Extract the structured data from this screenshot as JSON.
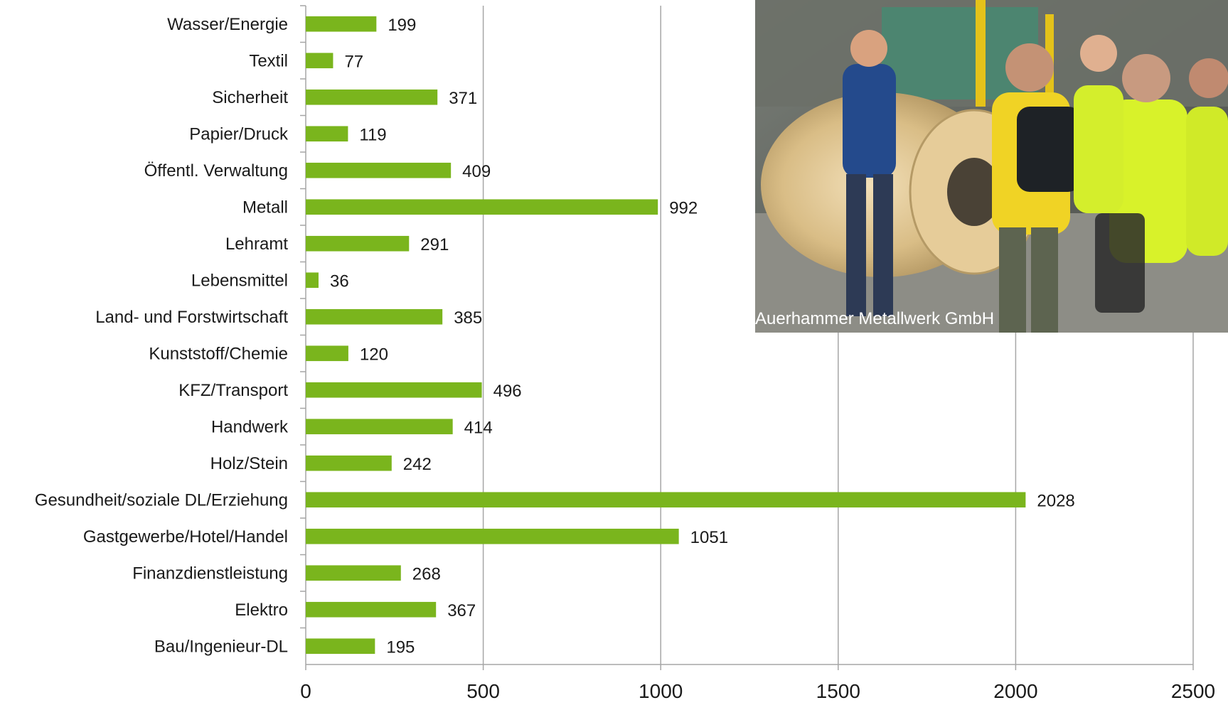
{
  "chart_data": {
    "type": "bar",
    "orientation": "horizontal",
    "categories": [
      "Wasser/Energie",
      "Textil",
      "Sicherheit",
      "Papier/Druck",
      "Öffentl. Verwaltung",
      "Metall",
      "Lehramt",
      "Lebensmittel",
      "Land- und Forstwirtschaft",
      "Kunststoff/Chemie",
      "KFZ/Transport",
      "Handwerk",
      "Holz/Stein",
      "Gesundheit/soziale DL/Erziehung",
      "Gastgewerbe/Hotel/Handel",
      "Finanzdienstleistung",
      "Elektro",
      "Bau/Ingenieur-DL"
    ],
    "values": [
      199,
      77,
      371,
      119,
      409,
      992,
      291,
      36,
      385,
      120,
      496,
      414,
      242,
      2028,
      1051,
      268,
      367,
      195
    ],
    "title": "",
    "xlabel": "",
    "ylabel": "",
    "xlim": [
      0,
      2500
    ],
    "x_ticks": [
      "0",
      "500",
      "1000",
      "1500",
      "2000",
      "2500"
    ],
    "grid": "vertical",
    "legend": "none",
    "bar_color": "#7ab51d",
    "grid_color": "#a6a6a6"
  },
  "photo": {
    "caption": "Auerhammer Metallwerk GmbH",
    "description_icon": "photo-factory-visit"
  }
}
